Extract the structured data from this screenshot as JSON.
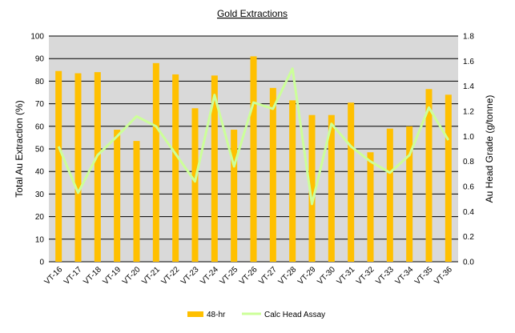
{
  "chart_data": {
    "type": "bar",
    "title": "Gold Extractions",
    "categories": [
      "VT-16",
      "VT-17",
      "VT-18",
      "VT-19",
      "VT-20",
      "VT-21",
      "VT-22",
      "VT-23",
      "VT-24",
      "VT-25",
      "VT-26",
      "VT-27",
      "VT-28",
      "VT-29",
      "VT-30",
      "VT-31",
      "VT-32",
      "VT-33",
      "VT-34",
      "VT-35",
      "VT-36"
    ],
    "series": [
      {
        "name": "48-hr",
        "type": "bar",
        "axis": "left",
        "color": "#FFC000",
        "values": [
          84.5,
          83.5,
          84,
          58.5,
          53.5,
          88,
          83,
          68,
          82.5,
          58.5,
          91,
          77,
          71.5,
          65,
          65,
          70.5,
          48.5,
          59,
          60,
          76.5,
          74
        ]
      },
      {
        "name": "Calc Head Assay",
        "type": "line",
        "axis": "right",
        "color": "#CCFF99",
        "values": [
          0.92,
          0.55,
          0.85,
          1.0,
          1.16,
          1.08,
          0.86,
          0.64,
          1.33,
          0.76,
          1.27,
          1.22,
          1.54,
          0.46,
          1.1,
          0.92,
          0.8,
          0.71,
          0.85,
          1.23,
          0.97
        ]
      }
    ],
    "ylabel": "Total Au Extraction (%)",
    "ylim": [
      0,
      100
    ],
    "yticks": [
      "0",
      "10",
      "20",
      "30",
      "40",
      "50",
      "60",
      "70",
      "80",
      "90",
      "100"
    ],
    "y2label": "Au Head Grade (g/tonne)",
    "y2lim": [
      0,
      1.8
    ],
    "y2ticks": [
      "0.0",
      "0.2",
      "0.4",
      "0.6",
      "0.8",
      "1.0",
      "1.2",
      "1.4",
      "1.6",
      "1.8"
    ],
    "grid": true,
    "plot_background": "#D9D9D9",
    "legend": "bottom"
  }
}
